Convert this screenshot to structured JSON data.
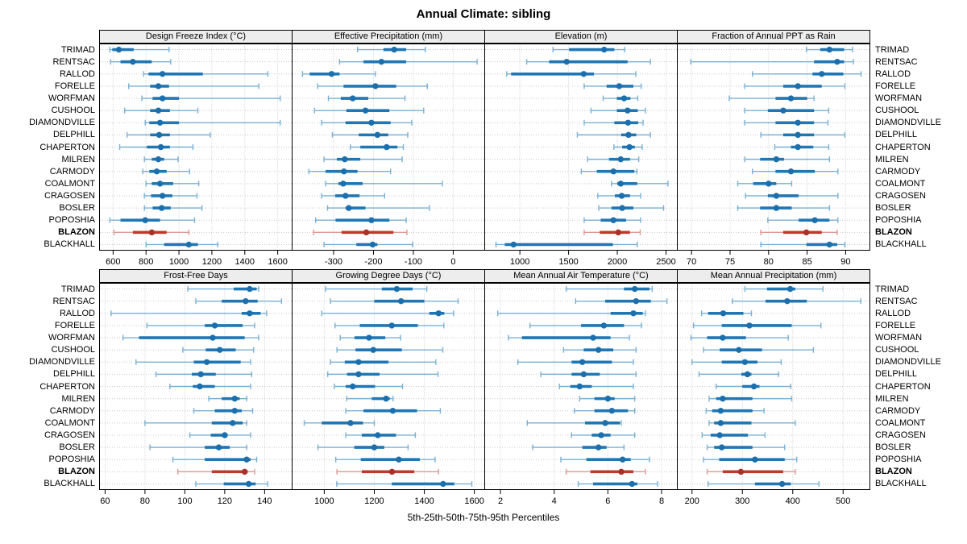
{
  "page": {
    "title": "Annual Climate: sibling",
    "caption": "5th-25th-50th-75th-95th Percentiles"
  },
  "chart_data": {
    "type": "dotplot",
    "title": "Annual Climate: sibling",
    "caption": "5th-25th-50th-75th-95th Percentiles",
    "percentiles": [
      5,
      25,
      50,
      75,
      95
    ],
    "legend_position": "none",
    "grid": "dotted",
    "highlight_site": "BLAZON",
    "colors": {
      "blue_dot": "#1c6fad",
      "blue_bar": "#2077b4",
      "blue_whisker": "#7ab0d4",
      "red_dot": "#a93226",
      "red_bar": "#c0392b",
      "red_whisker": "#dc9a93",
      "gridline": "#c9c9c9",
      "panel_border": "#000000",
      "header_bg": "#ededed"
    },
    "sites": [
      "TRIMAD",
      "RENTSAC",
      "RALLOD",
      "FORELLE",
      "WORFMAN",
      "CUSHOOL",
      "DIAMONDVILLE",
      "DELPHILL",
      "CHAPERTON",
      "MILREN",
      "CARMODY",
      "COALMONT",
      "CRAGOSEN",
      "BOSLER",
      "POPOSHIA",
      "BLAZON",
      "BLACKHALL"
    ],
    "panels": [
      {
        "title": "Design Freeze Index (°C)",
        "ticks": [
          600,
          800,
          1000,
          1200,
          1400,
          1600
        ],
        "xlim": [
          515,
          1690
        ],
        "data": [
          [
            580,
            595,
            635,
            725,
            940
          ],
          [
            585,
            645,
            720,
            835,
            950
          ],
          [
            785,
            815,
            900,
            1145,
            1540
          ],
          [
            695,
            825,
            875,
            940,
            1485
          ],
          [
            775,
            840,
            900,
            1000,
            1615
          ],
          [
            670,
            825,
            875,
            945,
            1115
          ],
          [
            795,
            820,
            885,
            1000,
            1615
          ],
          [
            685,
            825,
            880,
            945,
            1190
          ],
          [
            640,
            805,
            890,
            945,
            1085
          ],
          [
            790,
            835,
            875,
            910,
            995
          ],
          [
            780,
            820,
            865,
            925,
            1065
          ],
          [
            800,
            835,
            885,
            965,
            1120
          ],
          [
            790,
            830,
            900,
            960,
            1110
          ],
          [
            790,
            840,
            895,
            950,
            1140
          ],
          [
            580,
            645,
            795,
            885,
            1095
          ],
          [
            605,
            720,
            835,
            925,
            1060
          ],
          [
            800,
            910,
            1060,
            1115,
            1235
          ]
        ]
      },
      {
        "title": "Effective Precipitation (mm)",
        "ticks": [
          -300,
          -200,
          -100,
          0
        ],
        "xlim": [
          -405,
          80
        ],
        "data": [
          [
            -240,
            -175,
            -148,
            -118,
            -70
          ],
          [
            -285,
            -225,
            -180,
            -118,
            60
          ],
          [
            -378,
            -360,
            -305,
            -285,
            -195
          ],
          [
            -340,
            -275,
            -195,
            -143,
            -65
          ],
          [
            -313,
            -282,
            -252,
            -213,
            -121
          ],
          [
            -348,
            -268,
            -220,
            -160,
            -74
          ],
          [
            -330,
            -270,
            -205,
            -157,
            -104
          ],
          [
            -303,
            -237,
            -190,
            -163,
            -114
          ],
          [
            -258,
            -233,
            -167,
            -140,
            -125
          ],
          [
            -324,
            -292,
            -272,
            -233,
            -128
          ],
          [
            -362,
            -320,
            -274,
            -240,
            -157
          ],
          [
            -320,
            -288,
            -276,
            -227,
            -27
          ],
          [
            -330,
            -296,
            -270,
            -235,
            -172
          ],
          [
            -315,
            -270,
            -262,
            -220,
            -60
          ],
          [
            -345,
            -295,
            -205,
            -160,
            -118
          ],
          [
            -350,
            -280,
            -218,
            -150,
            -116
          ],
          [
            -324,
            -243,
            -202,
            -190,
            -102
          ]
        ]
      },
      {
        "title": "Elevation (m)",
        "ticks": [
          1000,
          1500,
          2000,
          2500
        ],
        "xlim": [
          635,
          2620
        ],
        "data": [
          [
            1340,
            1505,
            1865,
            1970,
            2075
          ],
          [
            1070,
            1300,
            1480,
            2105,
            2340
          ],
          [
            865,
            910,
            1655,
            1760,
            2190
          ],
          [
            1660,
            1890,
            2020,
            2165,
            2245
          ],
          [
            1855,
            1995,
            2070,
            2135,
            2210
          ],
          [
            1730,
            1995,
            2105,
            2210,
            2290
          ],
          [
            1660,
            1970,
            2110,
            2215,
            2265
          ],
          [
            1590,
            2040,
            2115,
            2195,
            2340
          ],
          [
            1965,
            2050,
            2125,
            2180,
            2255
          ],
          [
            1695,
            1915,
            2035,
            2130,
            2220
          ],
          [
            1630,
            1790,
            1960,
            2175,
            2200
          ],
          [
            1940,
            2000,
            2035,
            2205,
            2520
          ],
          [
            1800,
            1975,
            2045,
            2130,
            2240
          ],
          [
            1810,
            1940,
            2050,
            2165,
            2475
          ],
          [
            1660,
            1830,
            1960,
            2090,
            2240
          ],
          [
            1660,
            1820,
            2010,
            2130,
            2235
          ],
          [
            755,
            845,
            935,
            1955,
            2205
          ]
        ]
      },
      {
        "title": "Fraction of Annual PPT as Rain",
        "ticks": [
          70,
          75,
          80,
          85,
          90
        ],
        "xlim": [
          68.1,
          93.2
        ],
        "data": [
          [
            84.9,
            86.7,
            87.9,
            89.8,
            90.9
          ],
          [
            69.9,
            85.9,
            88.9,
            89.8,
            91.0
          ],
          [
            77.9,
            85.7,
            86.9,
            89.7,
            92.0
          ],
          [
            76.9,
            81.9,
            83.8,
            86.9,
            89.9
          ],
          [
            74.9,
            80.9,
            82.9,
            85.0,
            85.9
          ],
          [
            76.9,
            79.9,
            81.9,
            85.9,
            87.8
          ],
          [
            76.9,
            80.9,
            83.8,
            85.9,
            87.7
          ],
          [
            79.0,
            81.9,
            83.8,
            85.9,
            89.9
          ],
          [
            80.8,
            82.9,
            83.8,
            85.8,
            87.8
          ],
          [
            76.9,
            78.9,
            81.0,
            82.0,
            87.9
          ],
          [
            77.9,
            80.9,
            82.9,
            86.0,
            89.0
          ],
          [
            76.0,
            78.0,
            80.0,
            81.0,
            83.0
          ],
          [
            77.0,
            79.9,
            81.0,
            83.9,
            89.0
          ],
          [
            76.0,
            78.9,
            81.0,
            83.0,
            87.9
          ],
          [
            79.9,
            83.9,
            86.0,
            87.9,
            89.0
          ],
          [
            79.0,
            81.9,
            84.9,
            86.9,
            88.9
          ],
          [
            79.0,
            84.9,
            87.9,
            88.9,
            89.9
          ]
        ]
      },
      {
        "title": "Frost-Free Days",
        "ticks": [
          60,
          80,
          100,
          120,
          140
        ],
        "xlim": [
          57,
          154
        ],
        "data": [
          [
            101.5,
            124.5,
            132.5,
            136,
            137
          ],
          [
            105.5,
            118.5,
            130.5,
            136.5,
            148.5
          ],
          [
            63,
            128.5,
            132.5,
            138,
            141
          ],
          [
            81,
            110,
            115,
            129,
            135
          ],
          [
            69,
            77,
            114,
            130,
            137
          ],
          [
            99,
            110.5,
            117.5,
            125.5,
            134.5
          ],
          [
            75.5,
            104.5,
            111,
            128,
            133
          ],
          [
            85.5,
            103.5,
            108,
            115.5,
            133.5
          ],
          [
            92.5,
            104,
            107.5,
            115,
            133
          ],
          [
            112,
            118.5,
            125,
            127.5,
            131
          ],
          [
            104.5,
            115,
            125,
            128.5,
            134
          ],
          [
            80,
            113.5,
            124,
            129,
            131
          ],
          [
            102.5,
            113,
            120,
            121.5,
            133
          ],
          [
            82.5,
            110,
            117,
            122.5,
            131
          ],
          [
            94,
            110,
            131,
            133,
            136
          ],
          [
            96.5,
            113.5,
            130,
            131.5,
            135
          ],
          [
            105.5,
            119.5,
            132,
            135.5,
            141.5
          ]
        ]
      },
      {
        "title": "Growing Degree Days (°C)",
        "ticks": [
          1000,
          1200,
          1400,
          1600
        ],
        "xlim": [
          870,
          1643
        ],
        "data": [
          [
            1005,
            1230,
            1290,
            1353,
            1410
          ],
          [
            1025,
            1200,
            1307,
            1400,
            1535
          ],
          [
            990,
            1420,
            1457,
            1480,
            1517
          ],
          [
            1043,
            1142,
            1270,
            1374,
            1478
          ],
          [
            1064,
            1121,
            1179,
            1244,
            1305
          ],
          [
            1051,
            1125,
            1196,
            1310,
            1474
          ],
          [
            1025,
            1082,
            1137,
            1257,
            1446
          ],
          [
            1014,
            1091,
            1137,
            1221,
            1455
          ],
          [
            1040,
            1086,
            1114,
            1203,
            1313
          ],
          [
            1090,
            1190,
            1247,
            1262,
            1275
          ],
          [
            1086,
            1157,
            1274,
            1371,
            1464
          ],
          [
            920,
            990,
            1105,
            1155,
            1200
          ],
          [
            1086,
            1150,
            1214,
            1287,
            1364
          ],
          [
            975,
            1120,
            1200,
            1240,
            1335
          ],
          [
            1046,
            1146,
            1298,
            1382,
            1443
          ],
          [
            1051,
            1150,
            1271,
            1360,
            1457
          ],
          [
            1050,
            1270,
            1475,
            1520,
            1590
          ]
        ]
      },
      {
        "title": "Mean Annual Air Temperature (°C)",
        "ticks": [
          2,
          4,
          6,
          8
        ],
        "xlim": [
          1.4,
          8.6
        ],
        "data": [
          [
            4.45,
            6.6,
            7.0,
            7.55,
            7.65
          ],
          [
            4.8,
            5.9,
            7.05,
            7.6,
            8.2
          ],
          [
            1.9,
            6.1,
            6.95,
            7.3,
            7.4
          ],
          [
            3.1,
            5.0,
            5.85,
            6.6,
            7.25
          ],
          [
            2.3,
            2.8,
            5.45,
            6.1,
            6.8
          ],
          [
            4.35,
            5.1,
            5.65,
            6.2,
            7.05
          ],
          [
            2.65,
            4.65,
            5.05,
            6.15,
            6.95
          ],
          [
            3.5,
            4.65,
            5.1,
            5.7,
            7.05
          ],
          [
            4.2,
            4.6,
            4.95,
            5.4,
            6.95
          ],
          [
            4.95,
            5.5,
            6.0,
            6.25,
            7.0
          ],
          [
            4.75,
            5.5,
            6.15,
            6.75,
            7.0
          ],
          [
            3.0,
            5.15,
            5.9,
            6.45,
            6.5
          ],
          [
            4.65,
            5.4,
            5.75,
            6.1,
            7.0
          ],
          [
            3.2,
            5.05,
            5.65,
            5.95,
            6.6
          ],
          [
            4.25,
            5.2,
            6.55,
            6.85,
            7.55
          ],
          [
            4.45,
            5.35,
            6.5,
            6.95,
            7.4
          ],
          [
            4.9,
            5.45,
            6.9,
            7.1,
            7.85
          ]
        ]
      },
      {
        "title": "Mean Annual Precipitation (mm)",
        "ticks": [
          200,
          300,
          400,
          500
        ],
        "xlim": [
          170,
          554
        ],
        "data": [
          [
            305,
            349,
            395,
            405,
            460
          ],
          [
            280,
            346,
            389,
            428,
            535
          ],
          [
            219,
            232,
            262,
            302,
            318
          ],
          [
            203,
            259,
            314,
            398,
            456
          ],
          [
            198,
            230,
            261,
            307,
            391
          ],
          [
            223,
            255,
            293,
            339,
            441
          ],
          [
            200,
            259,
            305,
            330,
            377
          ],
          [
            214,
            298,
            310,
            318,
            372
          ],
          [
            248,
            300,
            323,
            334,
            396
          ],
          [
            234,
            248,
            261,
            320,
            398
          ],
          [
            228,
            240,
            257,
            320,
            343
          ],
          [
            234,
            244,
            257,
            318,
            405
          ],
          [
            220,
            237,
            255,
            311,
            345
          ],
          [
            230,
            244,
            259,
            320,
            384
          ],
          [
            223,
            254,
            325,
            384,
            408
          ],
          [
            230,
            261,
            297,
            381,
            405
          ],
          [
            232,
            325,
            379,
            396,
            452
          ]
        ]
      }
    ]
  }
}
